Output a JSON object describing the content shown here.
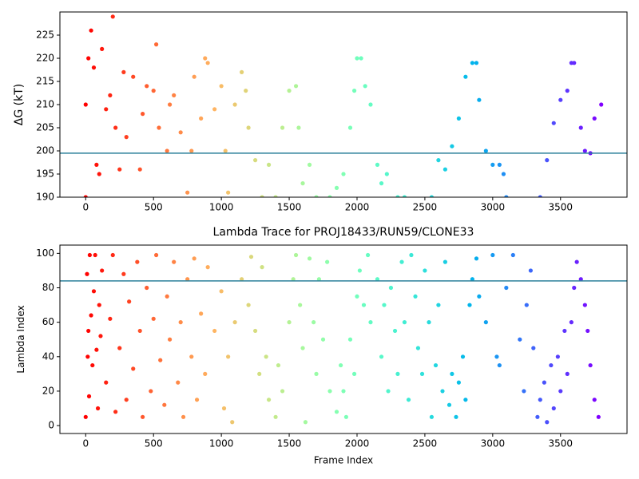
{
  "chart_data": [
    {
      "type": "scatter",
      "ylabel": "ΔG (kT)",
      "colormap": "rainbow_r",
      "hline": 199.5,
      "hline_color": "#2a7f9a",
      "xlim": [
        -190,
        3990
      ],
      "ylim": [
        190,
        230
      ],
      "xticks": [
        0,
        500,
        1000,
        1500,
        2000,
        2500,
        3000,
        3500
      ],
      "yticks": [
        190,
        195,
        200,
        205,
        210,
        215,
        220,
        225
      ],
      "x": [
        0,
        0,
        20,
        40,
        60,
        80,
        100,
        120,
        150,
        180,
        200,
        220,
        250,
        280,
        300,
        350,
        400,
        420,
        450,
        500,
        520,
        540,
        600,
        620,
        650,
        700,
        750,
        780,
        800,
        850,
        880,
        900,
        950,
        1000,
        1030,
        1050,
        1100,
        1150,
        1180,
        1200,
        1250,
        1300,
        1350,
        1400,
        1450,
        1500,
        1550,
        1570,
        1600,
        1650,
        1700,
        1800,
        1850,
        1900,
        1950,
        1980,
        2000,
        2030,
        2060,
        2100,
        2150,
        2180,
        2220,
        2300,
        2350,
        2550,
        2600,
        2650,
        2700,
        2750,
        2800,
        2850,
        2880,
        2900,
        2950,
        3000,
        3050,
        3080,
        3100,
        3350,
        3400,
        3450,
        3500,
        3550,
        3580,
        3600,
        3650,
        3680,
        3720,
        3750,
        3800
      ],
      "y": [
        190,
        210,
        220,
        226,
        218,
        197,
        195,
        222,
        209,
        212,
        229,
        205,
        196,
        217,
        203,
        216,
        196,
        208,
        214,
        213,
        223,
        205,
        200,
        210,
        212,
        204,
        191,
        200,
        216,
        207,
        220,
        219,
        209,
        214,
        200,
        191,
        210,
        217,
        213,
        205,
        198,
        190,
        197,
        190,
        205,
        213,
        214,
        205,
        193,
        197,
        190,
        190,
        192,
        195,
        205,
        213,
        220,
        220,
        214,
        210,
        197,
        193,
        195,
        190,
        190,
        190,
        198,
        196,
        201,
        207,
        216,
        219,
        219,
        211,
        200,
        197,
        197,
        195,
        190,
        190,
        198,
        206,
        211,
        213,
        219,
        219,
        205,
        200,
        199.5,
        207,
        210
      ]
    },
    {
      "type": "scatter",
      "title": "Lambda Trace for PROJ18433/RUN59/CLONE33",
      "xlabel": "Frame Index",
      "ylabel": "Lambda Index",
      "colormap": "rainbow_r",
      "hline": 84,
      "hline_color": "#2a7f9a",
      "xlim": [
        -190,
        3990
      ],
      "ylim": [
        -4.6,
        104.8
      ],
      "xticks": [
        0,
        500,
        1000,
        1500,
        2000,
        2500,
        3000,
        3500
      ],
      "yticks": [
        0,
        20,
        40,
        60,
        80,
        100
      ],
      "x": [
        0,
        10,
        15,
        20,
        25,
        30,
        40,
        50,
        60,
        70,
        80,
        90,
        100,
        110,
        120,
        150,
        180,
        200,
        220,
        250,
        280,
        300,
        320,
        350,
        380,
        400,
        420,
        450,
        480,
        500,
        520,
        550,
        580,
        600,
        620,
        650,
        680,
        700,
        720,
        750,
        780,
        800,
        820,
        850,
        880,
        900,
        950,
        1000,
        1020,
        1050,
        1080,
        1100,
        1150,
        1200,
        1220,
        1250,
        1280,
        1300,
        1330,
        1350,
        1400,
        1420,
        1450,
        1500,
        1530,
        1550,
        1580,
        1600,
        1620,
        1650,
        1680,
        1700,
        1720,
        1750,
        1780,
        1800,
        1850,
        1880,
        1900,
        1920,
        1950,
        1980,
        2000,
        2020,
        2050,
        2080,
        2100,
        2150,
        2180,
        2200,
        2230,
        2250,
        2280,
        2300,
        2330,
        2350,
        2380,
        2400,
        2430,
        2450,
        2480,
        2500,
        2530,
        2550,
        2580,
        2600,
        2630,
        2650,
        2680,
        2700,
        2730,
        2750,
        2780,
        2800,
        2830,
        2850,
        2880,
        2900,
        2950,
        3000,
        3030,
        3050,
        3100,
        3150,
        3200,
        3230,
        3250,
        3280,
        3300,
        3330,
        3350,
        3380,
        3400,
        3430,
        3450,
        3480,
        3500,
        3530,
        3550,
        3580,
        3600,
        3620,
        3650,
        3680,
        3700,
        3720,
        3750,
        3780
      ],
      "y": [
        5,
        88,
        40,
        55,
        17,
        99,
        64,
        35,
        78,
        99,
        44,
        10,
        70,
        52,
        90,
        25,
        62,
        99,
        8,
        45,
        88,
        15,
        72,
        33,
        95,
        55,
        5,
        80,
        20,
        62,
        99,
        38,
        12,
        75,
        50,
        95,
        25,
        60,
        5,
        85,
        40,
        97,
        15,
        65,
        30,
        92,
        55,
        78,
        10,
        40,
        2,
        60,
        85,
        70,
        98,
        55,
        30,
        92,
        40,
        15,
        5,
        35,
        20,
        60,
        85,
        99,
        70,
        45,
        2,
        97,
        60,
        30,
        85,
        50,
        95,
        20,
        8,
        35,
        20,
        5,
        50,
        30,
        75,
        90,
        70,
        99,
        60,
        85,
        40,
        70,
        20,
        80,
        55,
        30,
        95,
        60,
        15,
        99,
        75,
        45,
        30,
        90,
        60,
        5,
        35,
        70,
        20,
        95,
        12,
        30,
        5,
        25,
        40,
        15,
        70,
        85,
        97,
        75,
        60,
        99,
        40,
        35,
        80,
        99,
        50,
        20,
        70,
        90,
        45,
        5,
        15,
        25,
        2,
        35,
        10,
        40,
        20,
        55,
        30,
        60,
        80,
        95,
        85,
        70,
        55,
        35,
        15,
        5
      ]
    }
  ]
}
